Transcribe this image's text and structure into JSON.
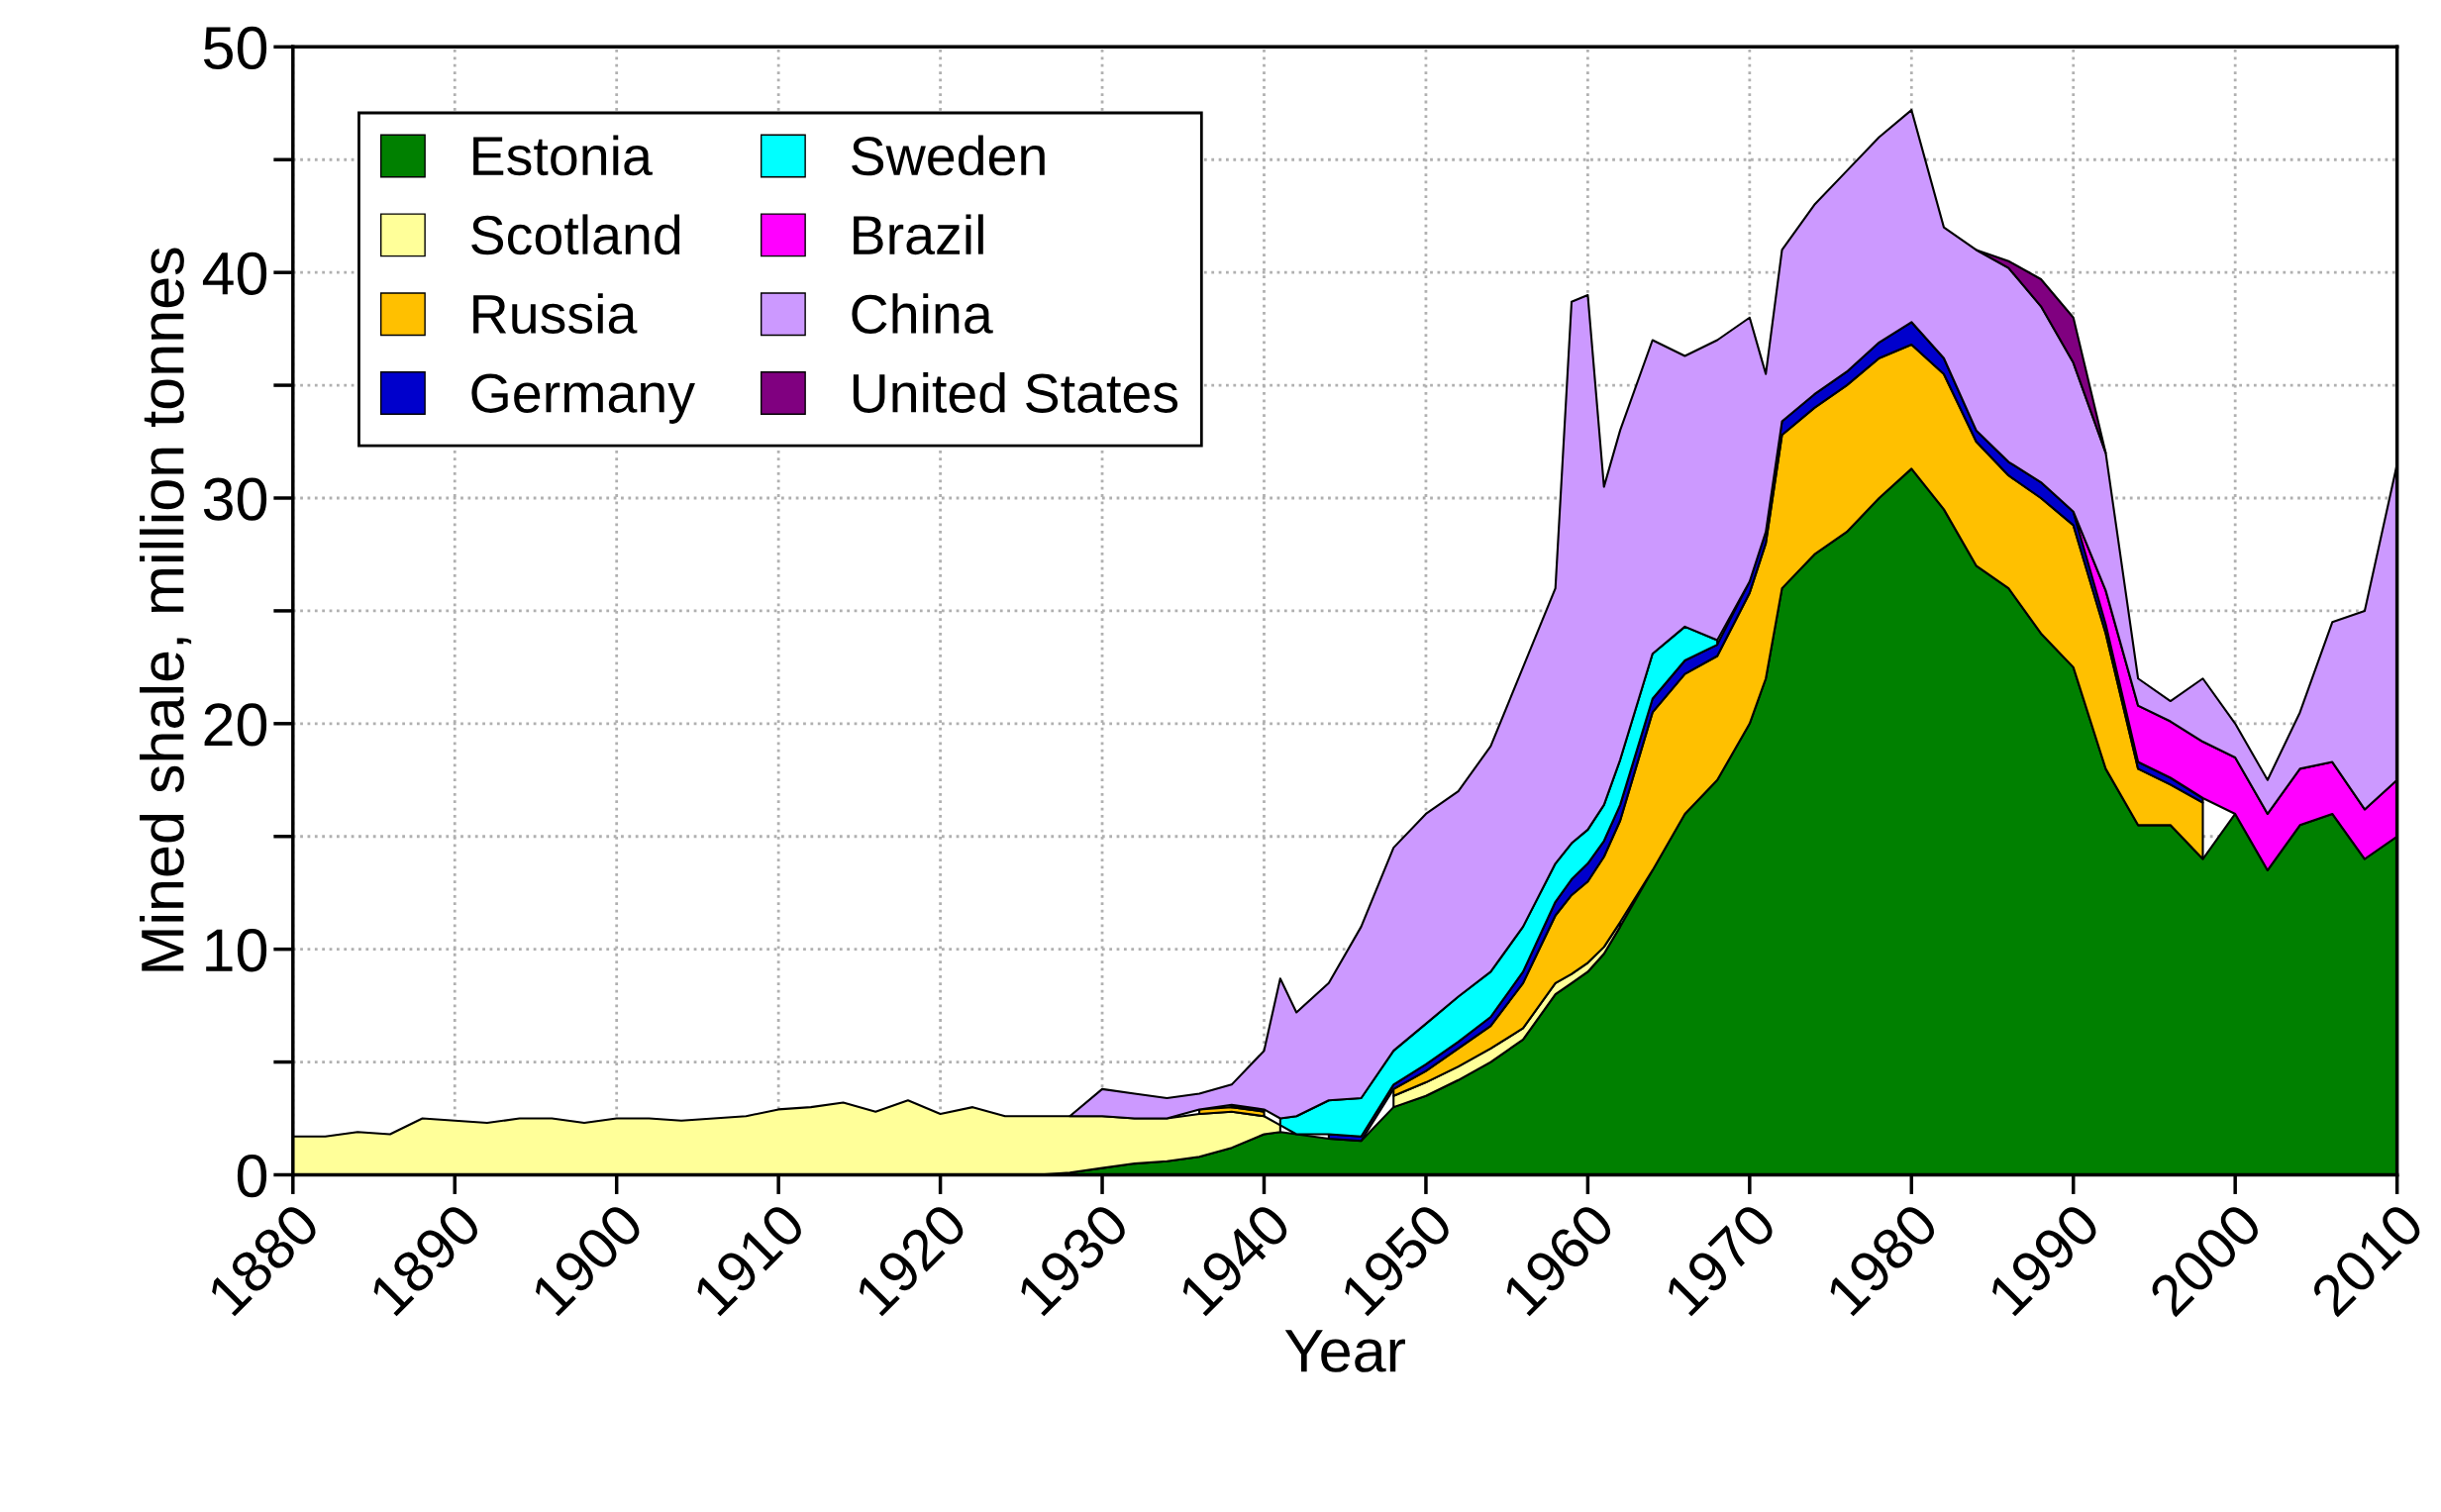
{
  "chart_data": {
    "type": "area",
    "stacked": true,
    "xlabel": "Year",
    "ylabel": "Mined shale, million tonnes",
    "x": [
      1880,
      1882,
      1884,
      1886,
      1888,
      1890,
      1892,
      1894,
      1896,
      1898,
      1900,
      1902,
      1904,
      1906,
      1908,
      1910,
      1912,
      1914,
      1916,
      1918,
      1920,
      1922,
      1924,
      1926,
      1928,
      1930,
      1932,
      1934,
      1936,
      1938,
      1940,
      1941,
      1942,
      1944,
      1946,
      1948,
      1950,
      1952,
      1954,
      1956,
      1958,
      1959,
      1960,
      1961,
      1962,
      1964,
      1966,
      1968,
      1970,
      1971,
      1972,
      1974,
      1976,
      1978,
      1980,
      1982,
      1984,
      1986,
      1988,
      1990,
      1992,
      1994,
      1996,
      1998,
      2000,
      2002,
      2004,
      2006,
      2008,
      2010
    ],
    "series": [
      {
        "name": "Estonia",
        "color": "#008000",
        "values": [
          null,
          null,
          null,
          null,
          null,
          null,
          null,
          null,
          null,
          null,
          null,
          null,
          null,
          null,
          null,
          null,
          null,
          null,
          null,
          null,
          null,
          null,
          null,
          0,
          0.1,
          0.3,
          0.5,
          0.6,
          0.8,
          1.2,
          1.8,
          1.9,
          1.8,
          1.6,
          1.5,
          3.0,
          3.5,
          4.2,
          5.0,
          6.0,
          8.0,
          8.5,
          9.0,
          9.8,
          11,
          13.5,
          16,
          17.5,
          20,
          22,
          26,
          27.5,
          28.5,
          30,
          31.3,
          29.5,
          27,
          26,
          24,
          22.5,
          18,
          15.5,
          15.5,
          14,
          16,
          13.5,
          15.5,
          16,
          14,
          15
        ]
      },
      {
        "name": "Scotland",
        "color": "#ffff99",
        "values": [
          1.7,
          1.7,
          1.9,
          1.8,
          2.5,
          2.4,
          2.3,
          2.5,
          2.5,
          2.3,
          2.5,
          2.5,
          2.4,
          2.5,
          2.6,
          2.9,
          3.0,
          3.2,
          2.8,
          3.3,
          2.7,
          3.0,
          2.6,
          2.6,
          2.5,
          2.3,
          2.0,
          1.9,
          1.9,
          1.6,
          0.8,
          0.3,
          null,
          null,
          null,
          0.5,
          0.6,
          0.6,
          0.6,
          0.5,
          0.5,
          0.4,
          0.4,
          0.3,
          0.2,
          null,
          null,
          null,
          null,
          null,
          null,
          null,
          null,
          null,
          null,
          null,
          null,
          null,
          null,
          null,
          null,
          null,
          null,
          null,
          null,
          null,
          null,
          null,
          null,
          null
        ]
      },
      {
        "name": "Russia",
        "color": "#ffc000",
        "values": [
          null,
          null,
          null,
          null,
          null,
          null,
          null,
          null,
          null,
          null,
          null,
          null,
          null,
          null,
          null,
          null,
          null,
          null,
          null,
          null,
          null,
          null,
          null,
          null,
          null,
          null,
          null,
          null,
          0.2,
          0.2,
          0.2,
          null,
          null,
          null,
          null,
          0.3,
          0.5,
          0.8,
          1.0,
          2.0,
          3.0,
          3.5,
          3.6,
          4.0,
          4.5,
          7.0,
          6.2,
          5.5,
          5.8,
          6,
          6.8,
          6.5,
          6.5,
          6.2,
          5.5,
          6,
          5.5,
          5,
          6,
          6.3,
          6,
          2.5,
          1.8,
          2.5,
          null,
          null,
          null,
          null,
          null,
          null
        ]
      },
      {
        "name": "Germany",
        "color": "#0000cc",
        "values": [
          null,
          null,
          null,
          null,
          null,
          null,
          null,
          null,
          null,
          null,
          null,
          null,
          null,
          null,
          null,
          null,
          null,
          null,
          null,
          null,
          null,
          null,
          null,
          null,
          null,
          null,
          null,
          null,
          null,
          0.1,
          0.1,
          null,
          null,
          0.2,
          0.2,
          0.2,
          0.3,
          0.3,
          0.4,
          0.5,
          0.6,
          0.7,
          0.8,
          0.7,
          0.7,
          0.6,
          0.6,
          0.5,
          0.5,
          0.5,
          0.6,
          0.6,
          0.6,
          0.7,
          1.0,
          0.7,
          0.5,
          0.6,
          0.7,
          0.6,
          0.4,
          0.3,
          0.3,
          0.2,
          null,
          null,
          null,
          null,
          null,
          null
        ]
      },
      {
        "name": "Sweden",
        "color": "#00ffff",
        "values": [
          null,
          null,
          null,
          null,
          null,
          null,
          null,
          null,
          null,
          null,
          null,
          null,
          null,
          null,
          null,
          null,
          null,
          null,
          null,
          null,
          null,
          null,
          null,
          null,
          null,
          null,
          null,
          null,
          null,
          null,
          null,
          0.3,
          0.8,
          1.5,
          1.7,
          1.5,
          1.8,
          2.0,
          2.0,
          2.0,
          1.7,
          1.6,
          1.5,
          1.6,
          2.0,
          2.0,
          1.5,
          0.2,
          null,
          null,
          null,
          null,
          null,
          null,
          null,
          null,
          null,
          null,
          null,
          null,
          null,
          null,
          null,
          null,
          null,
          null,
          null,
          null,
          null,
          null
        ]
      },
      {
        "name": "Brazil",
        "color": "#ff00ff",
        "values": [
          null,
          null,
          null,
          null,
          null,
          null,
          null,
          null,
          null,
          null,
          null,
          null,
          null,
          null,
          null,
          null,
          null,
          null,
          null,
          null,
          null,
          null,
          null,
          null,
          null,
          null,
          null,
          null,
          null,
          null,
          null,
          null,
          null,
          null,
          null,
          null,
          null,
          null,
          null,
          null,
          null,
          null,
          null,
          null,
          null,
          null,
          null,
          null,
          null,
          null,
          null,
          null,
          null,
          null,
          null,
          null,
          null,
          null,
          null,
          0,
          1.5,
          2.5,
          2.5,
          2.5,
          2.5,
          2.5,
          2.5,
          2.3,
          2.2,
          2.5
        ]
      },
      {
        "name": "China",
        "color": "#cc99ff",
        "values": [
          null,
          null,
          null,
          null,
          null,
          null,
          null,
          null,
          null,
          null,
          null,
          null,
          null,
          null,
          null,
          null,
          null,
          null,
          null,
          null,
          null,
          null,
          null,
          null,
          0,
          1.2,
          1.1,
          0.9,
          0.7,
          0.9,
          2.6,
          6.2,
          4.6,
          5.2,
          7.6,
          9.0,
          9.3,
          9.1,
          10,
          11.5,
          12.2,
          24,
          23.7,
          14.1,
          14.6,
          13.9,
          12,
          13.3,
          11.7,
          7,
          7.6,
          8.4,
          8.9,
          9.1,
          9.4,
          5.8,
          8,
          8.6,
          7.8,
          6.6,
          6.1,
          1.2,
          0.9,
          2.8,
          1.5,
          1.5,
          2.5,
          6.2,
          8.8,
          14
        ]
      },
      {
        "name": "United States",
        "color": "#800080",
        "values": [
          null,
          null,
          null,
          null,
          null,
          null,
          null,
          null,
          null,
          null,
          null,
          null,
          null,
          null,
          null,
          null,
          null,
          null,
          null,
          null,
          null,
          null,
          null,
          null,
          null,
          null,
          null,
          null,
          null,
          null,
          null,
          null,
          null,
          null,
          null,
          null,
          null,
          null,
          null,
          null,
          null,
          null,
          null,
          null,
          null,
          null,
          null,
          null,
          null,
          null,
          null,
          null,
          null,
          null,
          null,
          null,
          0,
          0.3,
          1.2,
          2.0,
          0,
          null,
          null,
          null,
          null,
          null,
          null,
          null,
          null,
          null
        ]
      }
    ],
    "xlim": [
      1880,
      2010
    ],
    "xticks": [
      1880,
      1890,
      1900,
      1910,
      1920,
      1930,
      1940,
      1950,
      1960,
      1970,
      1980,
      1990,
      2000,
      2010
    ],
    "ylim": [
      0,
      50
    ],
    "yticks": [
      0,
      {
        "value": 5,
        "label": null
      },
      10,
      {
        "value": 15,
        "label": null
      },
      20,
      {
        "value": 25,
        "label": null
      },
      30,
      {
        "value": 35,
        "label": null
      },
      40,
      {
        "value": 45,
        "label": null
      },
      50
    ],
    "grid": true,
    "legend": "top left"
  }
}
